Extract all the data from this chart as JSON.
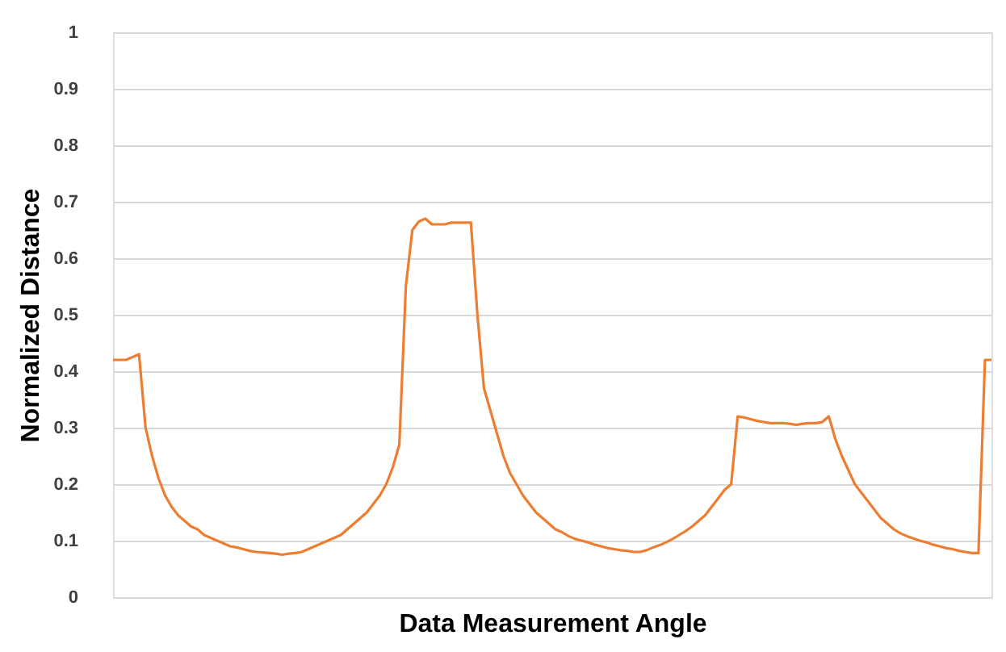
{
  "chart_data": {
    "type": "line",
    "xlabel": "Data Measurement Angle",
    "ylabel": "Normalized Distance",
    "categories": [
      null,
      null,
      null,
      null,
      null,
      null,
      null,
      null,
      null,
      null,
      null,
      null,
      null,
      null,
      null,
      null,
      null,
      null,
      null,
      null,
      null,
      null,
      null,
      null,
      null,
      null,
      null,
      null,
      null,
      null,
      null,
      null,
      null,
      null,
      null,
      null,
      null,
      null,
      null,
      null,
      null,
      null,
      null,
      null,
      null,
      null,
      null,
      null,
      null,
      null,
      null,
      null,
      null,
      null,
      null,
      null,
      null,
      null,
      null,
      null,
      null,
      null,
      null,
      null,
      null,
      null,
      null,
      null,
      null,
      null,
      null,
      null,
      null,
      null,
      null,
      null,
      null,
      null,
      null,
      null,
      null,
      null,
      null,
      null,
      null,
      null,
      null,
      null,
      null,
      null,
      null,
      null,
      null,
      null,
      null,
      null,
      null,
      null,
      null,
      null,
      null,
      null,
      null,
      null,
      null,
      null,
      null,
      null,
      null,
      null,
      null,
      null,
      null,
      null,
      null,
      null,
      null,
      null,
      null,
      null,
      null,
      null,
      null,
      null,
      null,
      null,
      null,
      null,
      null,
      null,
      null,
      null,
      null,
      null,
      null,
      null
    ],
    "series": [
      {
        "color": "#ed7d31",
        "values": [
          0.42,
          0.42,
          0.42,
          0.425,
          0.43,
          0.3,
          0.25,
          0.21,
          0.18,
          0.16,
          0.145,
          0.135,
          0.125,
          0.12,
          0.11,
          0.105,
          0.1,
          0.095,
          0.09,
          0.088,
          0.085,
          0.082,
          0.08,
          0.079,
          0.078,
          0.077,
          0.075,
          0.077,
          0.078,
          0.08,
          0.085,
          0.09,
          0.095,
          0.1,
          0.105,
          0.11,
          0.12,
          0.13,
          0.14,
          0.15,
          0.165,
          0.18,
          0.2,
          0.23,
          0.27,
          0.55,
          0.65,
          0.665,
          0.67,
          0.66,
          0.66,
          0.66,
          0.663,
          0.663,
          0.663,
          0.663,
          0.5,
          0.37,
          0.33,
          0.29,
          0.25,
          0.22,
          0.2,
          0.18,
          0.165,
          0.15,
          0.14,
          0.13,
          0.12,
          0.115,
          0.108,
          0.103,
          0.1,
          0.097,
          0.093,
          0.09,
          0.087,
          0.085,
          0.083,
          0.082,
          0.08,
          0.08,
          0.083,
          0.088,
          0.092,
          0.097,
          0.103,
          0.11,
          0.117,
          0.125,
          0.135,
          0.145,
          0.16,
          0.175,
          0.19,
          0.2,
          0.32,
          0.318,
          0.315,
          0.312,
          0.31,
          0.308,
          0.308,
          0.308,
          0.307,
          0.305,
          0.307,
          0.308,
          0.308,
          0.31,
          0.32,
          0.28,
          0.25,
          0.225,
          0.2,
          0.185,
          0.17,
          0.155,
          0.14,
          0.13,
          0.12,
          0.113,
          0.108,
          0.104,
          0.1,
          0.097,
          0.093,
          0.09,
          0.087,
          0.085,
          0.082,
          0.08,
          0.078,
          0.078,
          0.42,
          0.42
        ]
      }
    ],
    "ylim": [
      0,
      1
    ],
    "yticks": [
      0,
      0.1,
      0.2,
      0.3,
      0.4,
      0.5,
      0.6,
      0.7,
      0.8,
      0.9,
      1
    ],
    "grid": "y",
    "tick_labels": "y",
    "marker": "none",
    "line_style": "solid"
  }
}
